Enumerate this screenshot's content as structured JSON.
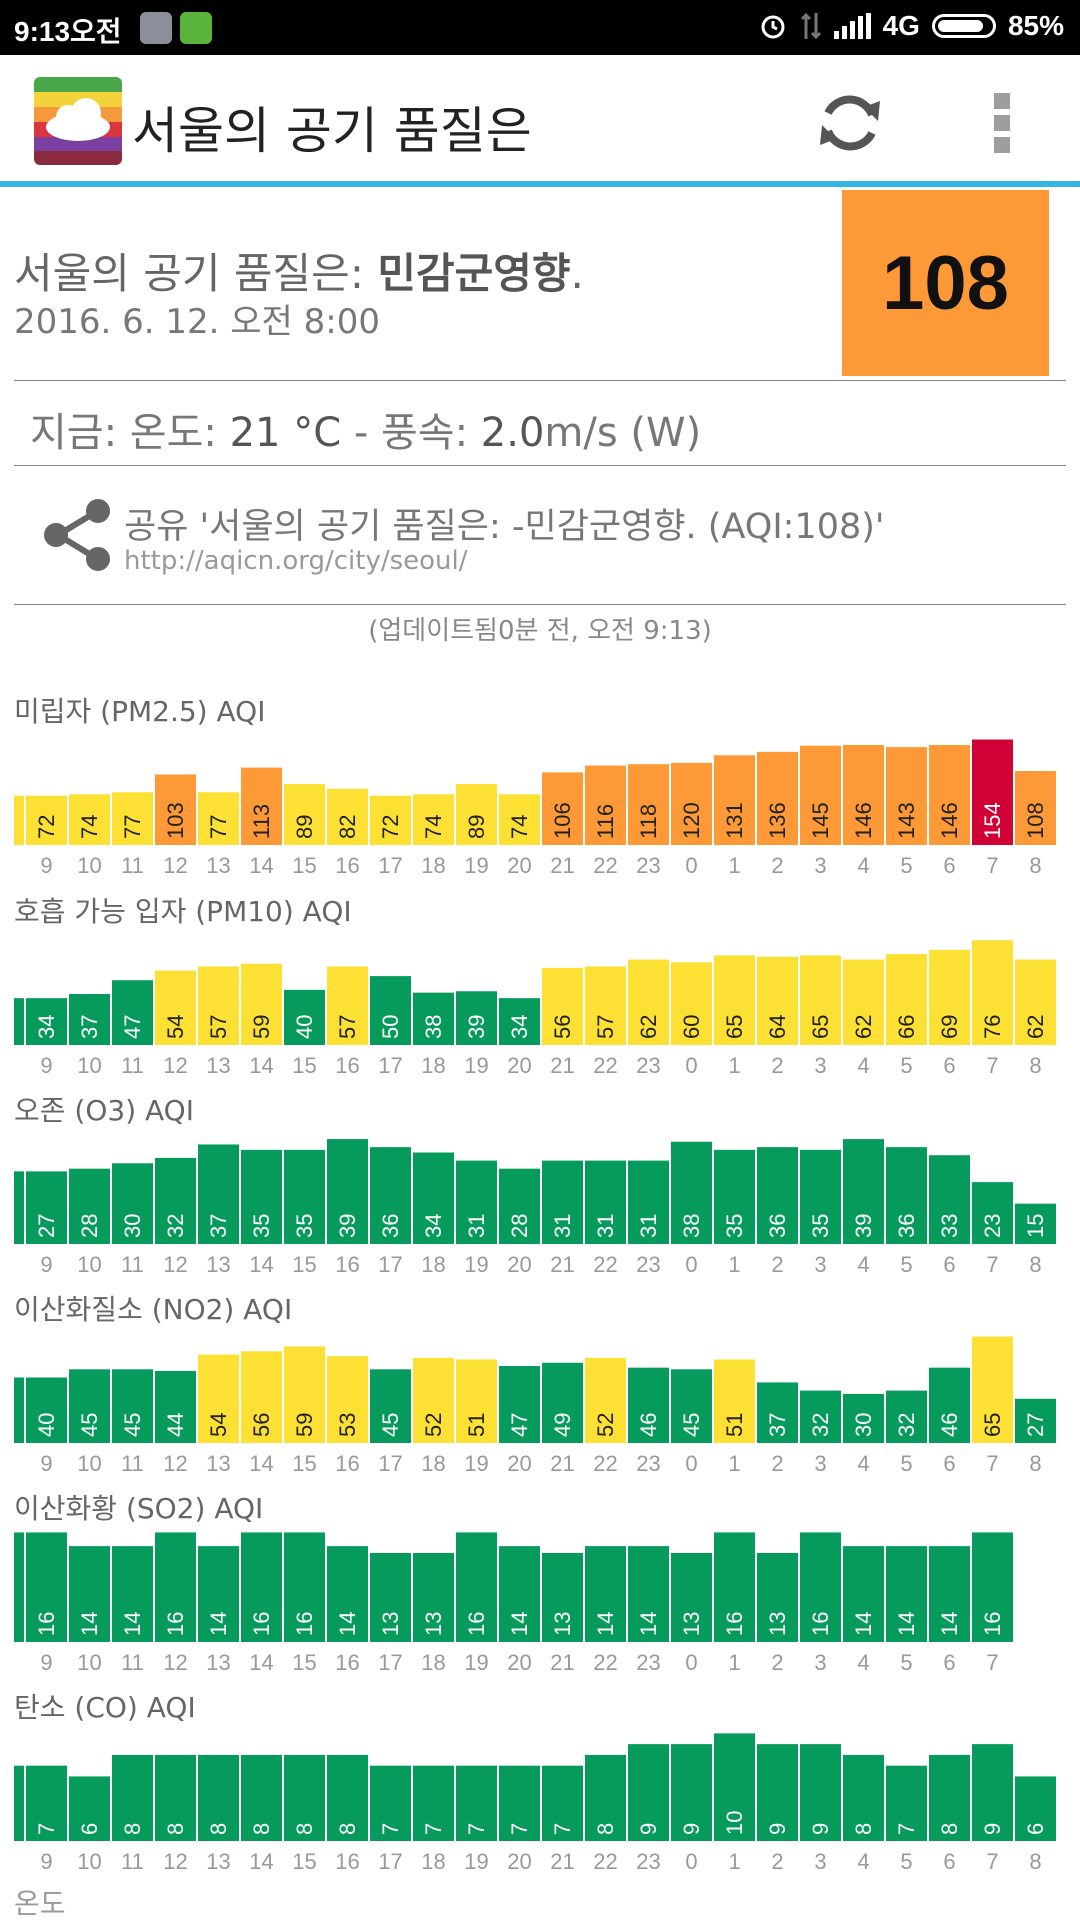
{
  "status_bar": {
    "time": "9:13오전",
    "network": "4G",
    "battery": "85%"
  },
  "app_bar": {
    "title": "서울의 공기 품질은"
  },
  "summary": {
    "label": "서울의 공기 품질은: ",
    "level": "민감군영향",
    "period": ".",
    "date": "2016. 6. 12. 오전 8:00",
    "aqi": "108"
  },
  "current": {
    "prefix": "지금: 온도: ",
    "temp": "21 °C",
    "sep": " - 풍속: ",
    "wind_value": "2.0",
    "wind_rest": "m/s (W)"
  },
  "share": {
    "text": "공유 '서울의 공기 품질은: -민감군영향. (AQI:108)'",
    "url": "http://aqicn.org/city/seoul/"
  },
  "updated": "(업데이트됨0분 전, 오전 9:13)",
  "colors": {
    "orange": "#fd9936",
    "yellow": "#fce033",
    "green": "#069a5c",
    "red": "#cf0135"
  },
  "chart_data": [
    {
      "type": "bar",
      "title": "미립자 (PM2.5) AQI",
      "categories": [
        "9",
        "10",
        "11",
        "12",
        "13",
        "14",
        "15",
        "16",
        "17",
        "18",
        "19",
        "20",
        "21",
        "22",
        "23",
        "0",
        "1",
        "2",
        "3",
        "4",
        "5",
        "6",
        "7",
        "8"
      ],
      "values": [
        72,
        74,
        77,
        103,
        77,
        113,
        89,
        82,
        72,
        74,
        89,
        74,
        106,
        116,
        118,
        120,
        131,
        136,
        145,
        146,
        143,
        146,
        154,
        108
      ],
      "ylim": [
        0,
        165
      ]
    },
    {
      "type": "bar",
      "title": "호흡 가능 입자 (PM10) AQI",
      "categories": [
        "9",
        "10",
        "11",
        "12",
        "13",
        "14",
        "15",
        "16",
        "17",
        "18",
        "19",
        "20",
        "21",
        "22",
        "23",
        "0",
        "1",
        "2",
        "3",
        "4",
        "5",
        "6",
        "7",
        "8"
      ],
      "values": [
        34,
        37,
        47,
        54,
        57,
        59,
        40,
        57,
        50,
        38,
        39,
        34,
        56,
        57,
        62,
        60,
        65,
        64,
        65,
        62,
        66,
        69,
        76,
        62
      ],
      "ylim": [
        0,
        82
      ]
    },
    {
      "type": "bar",
      "title": "오존 (O3) AQI",
      "categories": [
        "9",
        "10",
        "11",
        "12",
        "13",
        "14",
        "15",
        "16",
        "17",
        "18",
        "19",
        "20",
        "21",
        "22",
        "23",
        "0",
        "1",
        "2",
        "3",
        "4",
        "5",
        "6",
        "7",
        "8"
      ],
      "values": [
        27,
        28,
        30,
        32,
        37,
        35,
        35,
        39,
        36,
        34,
        31,
        28,
        31,
        31,
        31,
        38,
        35,
        36,
        35,
        39,
        36,
        33,
        23,
        15
      ],
      "ylim": [
        0,
        42
      ]
    },
    {
      "type": "bar",
      "title": "이산화질소 (NO2) AQI",
      "categories": [
        "9",
        "10",
        "11",
        "12",
        "13",
        "14",
        "15",
        "16",
        "17",
        "18",
        "19",
        "20",
        "21",
        "22",
        "23",
        "0",
        "1",
        "2",
        "3",
        "4",
        "5",
        "6",
        "7",
        "8"
      ],
      "values": [
        40,
        45,
        45,
        44,
        54,
        56,
        59,
        53,
        45,
        52,
        51,
        47,
        49,
        52,
        46,
        45,
        51,
        37,
        32,
        30,
        32,
        46,
        65,
        27
      ],
      "ylim": [
        0,
        69
      ]
    },
    {
      "type": "bar",
      "title": "이산화황 (SO2) AQI",
      "categories": [
        "9",
        "10",
        "11",
        "12",
        "13",
        "14",
        "15",
        "16",
        "17",
        "18",
        "19",
        "20",
        "21",
        "22",
        "23",
        "0",
        "1",
        "2",
        "3",
        "4",
        "5",
        "6",
        "7"
      ],
      "values": [
        16,
        14,
        14,
        16,
        14,
        16,
        16,
        14,
        13,
        13,
        16,
        14,
        13,
        14,
        14,
        13,
        16,
        13,
        16,
        14,
        14,
        14,
        16
      ],
      "ylim": [
        0,
        16.5
      ]
    },
    {
      "type": "bar",
      "title": "탄소 (CO) AQI",
      "categories": [
        "9",
        "10",
        "11",
        "12",
        "13",
        "14",
        "15",
        "16",
        "17",
        "18",
        "19",
        "20",
        "21",
        "22",
        "23",
        "0",
        "1",
        "2",
        "3",
        "4",
        "5",
        "6",
        "7",
        "8"
      ],
      "values": [
        7,
        6,
        8,
        8,
        8,
        8,
        8,
        8,
        7,
        7,
        7,
        7,
        7,
        8,
        9,
        9,
        10,
        9,
        9,
        8,
        7,
        8,
        9,
        6
      ],
      "ylim": [
        0,
        10.5
      ]
    }
  ],
  "next_section": "온도"
}
